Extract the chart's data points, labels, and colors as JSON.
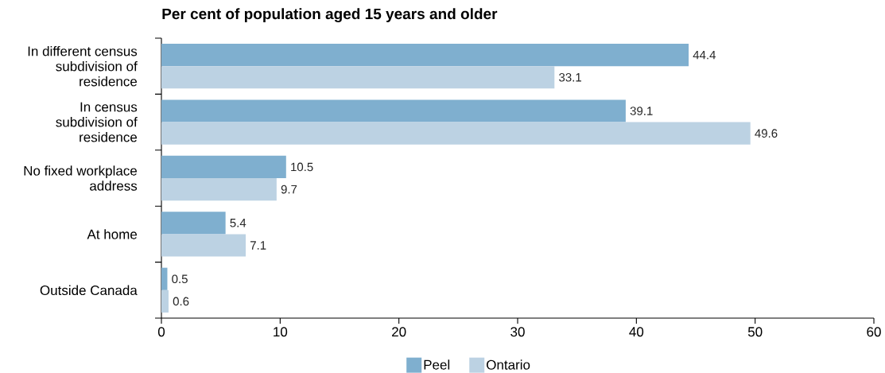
{
  "chart_data": {
    "type": "bar",
    "orientation": "horizontal",
    "title": "Per cent of population aged 15 years and older",
    "categories": [
      "In different census subdivision of residence",
      "In census subdivision of residence",
      "No fixed workplace address",
      "At home",
      "Outside Canada"
    ],
    "series": [
      {
        "name": "Peel",
        "color": "#7fafcf",
        "values": [
          44.4,
          39.1,
          10.5,
          5.4,
          0.5
        ]
      },
      {
        "name": "Ontario",
        "color": "#bcd2e3",
        "values": [
          33.1,
          49.6,
          9.7,
          7.1,
          0.6
        ]
      }
    ],
    "xlim": [
      0,
      60
    ],
    "xticks": [
      0,
      10,
      20,
      30,
      40,
      50,
      60
    ],
    "data_labels": true,
    "legend": "bottom"
  }
}
